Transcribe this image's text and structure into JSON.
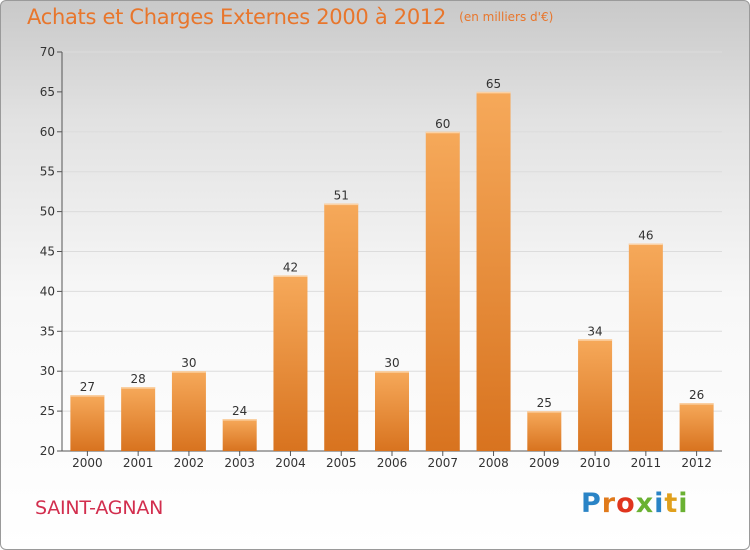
{
  "header": {
    "title": "Achats et Charges Externes 2000 à 2012",
    "unit": "(en milliers d'€)"
  },
  "footer": {
    "place": "SAINT-AGNAN",
    "logo_text": "Proxiti"
  },
  "colors": {
    "title": "#e8762c",
    "place": "#d22e4e",
    "bar_light": "#f6a95a",
    "bar_dark": "#d8731f",
    "grid": "#dcdcdc"
  },
  "chart_data": {
    "type": "bar",
    "title": "Achats et Charges Externes 2000 à 2012",
    "subtitle": "(en milliers d'€)",
    "xlabel": "",
    "ylabel": "",
    "categories": [
      "2000",
      "2001",
      "2002",
      "2003",
      "2004",
      "2005",
      "2006",
      "2007",
      "2008",
      "2009",
      "2010",
      "2011",
      "2012"
    ],
    "values": [
      27,
      28,
      30,
      24,
      42,
      51,
      30,
      60,
      65,
      25,
      34,
      46,
      26
    ],
    "ylim": [
      20,
      70
    ],
    "yticks": [
      20,
      25,
      30,
      35,
      40,
      45,
      50,
      55,
      60,
      65,
      70
    ],
    "grid": true,
    "legend": "none"
  }
}
